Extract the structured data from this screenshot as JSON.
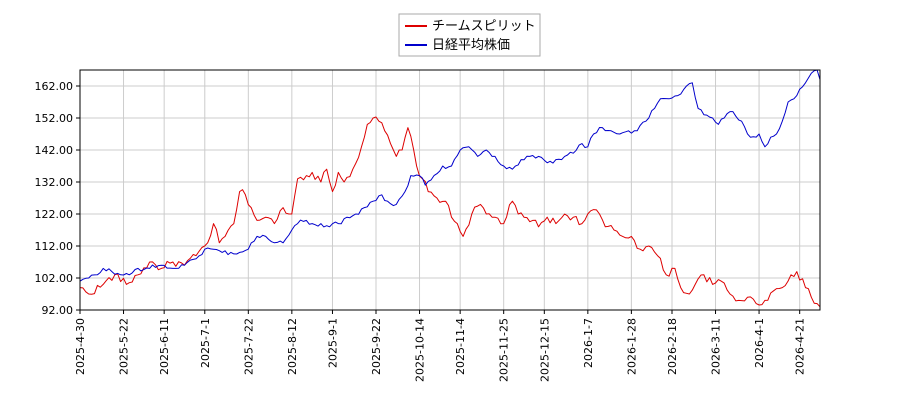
{
  "chart_data": {
    "type": "line",
    "title": "",
    "xlabel": "",
    "ylabel": "",
    "ylim": [
      92,
      167
    ],
    "y_ticks": [
      "92.00",
      "102.00",
      "112.00",
      "122.00",
      "132.00",
      "142.00",
      "152.00",
      "162.00"
    ],
    "y_tick_values": [
      92,
      102,
      112,
      122,
      132,
      142,
      152,
      162
    ],
    "x_tick_labels": [
      "2025-4-30",
      "2025-5-22",
      "2025-6-11",
      "2025-7-1",
      "2025-7-22",
      "2025-8-12",
      "2025-9-1",
      "2025-9-22",
      "2025-10-14",
      "2025-11-4",
      "2025-11-25",
      "2025-12-15",
      "2026-1-7",
      "2026-1-28",
      "2026-2-18",
      "2026-3-11",
      "2026-4-1",
      "2026-4-21"
    ],
    "x_tick_index": [
      0,
      15,
      29,
      43,
      58,
      73,
      87,
      102,
      117,
      131,
      146,
      160,
      175,
      190,
      204,
      219,
      234,
      248
    ],
    "x_count": 256,
    "grid": true,
    "legend_position": "top-center",
    "series": [
      {
        "name": "チームスピリット",
        "color": "#dd0000",
        "anchors": [
          [
            0,
            99
          ],
          [
            3,
            97
          ],
          [
            8,
            100
          ],
          [
            12,
            103
          ],
          [
            16,
            100
          ],
          [
            20,
            103
          ],
          [
            24,
            107
          ],
          [
            28,
            105
          ],
          [
            32,
            107
          ],
          [
            36,
            106
          ],
          [
            40,
            109
          ],
          [
            44,
            113
          ],
          [
            46,
            119
          ],
          [
            48,
            113
          ],
          [
            50,
            115
          ],
          [
            53,
            119
          ],
          [
            55,
            129
          ],
          [
            57,
            128
          ],
          [
            59,
            124
          ],
          [
            61,
            120
          ],
          [
            64,
            121
          ],
          [
            67,
            119
          ],
          [
            70,
            124
          ],
          [
            73,
            122
          ],
          [
            75,
            133
          ],
          [
            78,
            134
          ],
          [
            80,
            135
          ],
          [
            83,
            132
          ],
          [
            85,
            136
          ],
          [
            87,
            129
          ],
          [
            89,
            135
          ],
          [
            91,
            132
          ],
          [
            94,
            136
          ],
          [
            97,
            143
          ],
          [
            99,
            150
          ],
          [
            101,
            152
          ],
          [
            103,
            151
          ],
          [
            105,
            148
          ],
          [
            107,
            144
          ],
          [
            109,
            140
          ],
          [
            111,
            142
          ],
          [
            113,
            149
          ],
          [
            115,
            142
          ],
          [
            116,
            137
          ],
          [
            118,
            133
          ],
          [
            120,
            129
          ],
          [
            123,
            127
          ],
          [
            126,
            126
          ],
          [
            128,
            121
          ],
          [
            130,
            119
          ],
          [
            132,
            115
          ],
          [
            135,
            122
          ],
          [
            138,
            125
          ],
          [
            140,
            122
          ],
          [
            143,
            121
          ],
          [
            146,
            119
          ],
          [
            149,
            126
          ],
          [
            151,
            122
          ],
          [
            153,
            121
          ],
          [
            156,
            120
          ],
          [
            158,
            118
          ],
          [
            161,
            121
          ],
          [
            164,
            119
          ],
          [
            167,
            122
          ],
          [
            170,
            121
          ],
          [
            173,
            119
          ],
          [
            176,
            123
          ],
          [
            179,
            122
          ],
          [
            181,
            118
          ],
          [
            184,
            117
          ],
          [
            187,
            115
          ],
          [
            190,
            115
          ],
          [
            193,
            111
          ],
          [
            196,
            112
          ],
          [
            199,
            109
          ],
          [
            202,
            103
          ],
          [
            205,
            105
          ],
          [
            207,
            99
          ],
          [
            210,
            97
          ],
          [
            212,
            100
          ],
          [
            215,
            103
          ],
          [
            218,
            100
          ],
          [
            221,
            101
          ],
          [
            224,
            97
          ],
          [
            227,
            95
          ],
          [
            230,
            96
          ],
          [
            233,
            94
          ],
          [
            236,
            95
          ],
          [
            239,
            98
          ],
          [
            242,
            99
          ],
          [
            245,
            103
          ],
          [
            247,
            104
          ],
          [
            250,
            99
          ],
          [
            252,
            96
          ],
          [
            255,
            93
          ]
        ]
      },
      {
        "name": "日経平均株価",
        "color": "#0000cc",
        "anchors": [
          [
            0,
            101
          ],
          [
            3,
            102
          ],
          [
            6,
            103
          ],
          [
            8,
            105
          ],
          [
            11,
            104
          ],
          [
            14,
            103
          ],
          [
            17,
            103
          ],
          [
            20,
            105
          ],
          [
            24,
            105
          ],
          [
            28,
            106
          ],
          [
            32,
            105
          ],
          [
            36,
            106
          ],
          [
            40,
            108
          ],
          [
            43,
            111
          ],
          [
            46,
            111
          ],
          [
            49,
            110
          ],
          [
            52,
            110
          ],
          [
            55,
            110
          ],
          [
            58,
            111
          ],
          [
            61,
            115
          ],
          [
            64,
            115
          ],
          [
            67,
            113
          ],
          [
            70,
            113
          ],
          [
            73,
            117
          ],
          [
            75,
            119
          ],
          [
            78,
            120
          ],
          [
            80,
            119
          ],
          [
            83,
            119
          ],
          [
            86,
            118
          ],
          [
            89,
            119
          ],
          [
            92,
            121
          ],
          [
            95,
            122
          ],
          [
            98,
            124
          ],
          [
            101,
            126
          ],
          [
            104,
            128
          ],
          [
            106,
            126
          ],
          [
            109,
            125
          ],
          [
            112,
            129
          ],
          [
            114,
            134
          ],
          [
            117,
            134
          ],
          [
            119,
            131
          ],
          [
            122,
            134
          ],
          [
            125,
            137
          ],
          [
            128,
            137
          ],
          [
            131,
            142
          ],
          [
            134,
            143
          ],
          [
            137,
            140
          ],
          [
            140,
            142
          ],
          [
            143,
            140
          ],
          [
            146,
            137
          ],
          [
            149,
            136
          ],
          [
            152,
            139
          ],
          [
            155,
            140
          ],
          [
            158,
            140
          ],
          [
            161,
            138
          ],
          [
            164,
            139
          ],
          [
            167,
            140
          ],
          [
            170,
            141
          ],
          [
            173,
            144
          ],
          [
            175,
            143
          ],
          [
            177,
            147
          ],
          [
            180,
            149
          ],
          [
            183,
            148
          ],
          [
            186,
            147
          ],
          [
            189,
            148
          ],
          [
            192,
            148
          ],
          [
            195,
            151
          ],
          [
            198,
            155
          ],
          [
            200,
            158
          ],
          [
            203,
            158
          ],
          [
            206,
            159
          ],
          [
            209,
            162
          ],
          [
            211,
            163
          ],
          [
            213,
            155
          ],
          [
            215,
            153
          ],
          [
            218,
            152
          ],
          [
            220,
            150
          ],
          [
            222,
            152
          ],
          [
            225,
            154
          ],
          [
            228,
            151
          ],
          [
            231,
            146
          ],
          [
            234,
            147
          ],
          [
            236,
            143
          ],
          [
            238,
            146
          ],
          [
            240,
            147
          ],
          [
            242,
            151
          ],
          [
            244,
            157
          ],
          [
            246,
            158
          ],
          [
            248,
            161
          ],
          [
            250,
            163
          ],
          [
            252,
            166
          ],
          [
            254,
            167
          ],
          [
            255,
            164
          ]
        ]
      }
    ]
  }
}
